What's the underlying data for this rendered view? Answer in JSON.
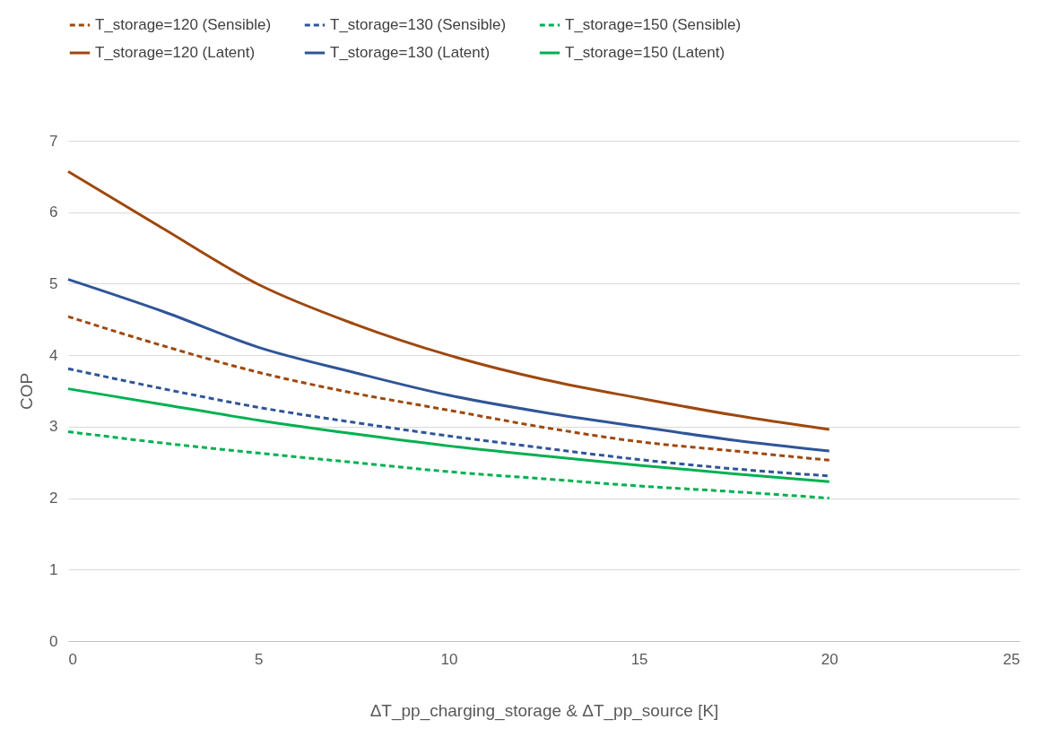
{
  "chart_data": {
    "type": "line",
    "xlabel": "ΔT_pp_charging_storage & ΔT_pp_source [K]",
    "ylabel": "COP",
    "xlim": [
      0,
      25
    ],
    "xticks": [
      0,
      5,
      10,
      15,
      20,
      25
    ],
    "ylim": [
      0,
      7
    ],
    "yticks": [
      0,
      1,
      2,
      3,
      4,
      5,
      6,
      7
    ],
    "grid": "y",
    "legend": "top",
    "marker": "none",
    "x": [
      0,
      2.5,
      5,
      7.5,
      10,
      12.5,
      15,
      17.5,
      20
    ],
    "series": [
      {
        "name": "T_storage=120 (Sensible)",
        "color": "#9e480e",
        "line_style": "dashed",
        "values": [
          4.54,
          4.13,
          3.76,
          3.47,
          3.23,
          2.99,
          2.79,
          2.66,
          2.53
        ]
      },
      {
        "name": "T_storage=130 (Sensible)",
        "color": "#2f5597",
        "line_style": "dashed",
        "values": [
          3.81,
          3.53,
          3.27,
          3.06,
          2.87,
          2.7,
          2.54,
          2.41,
          2.31
        ]
      },
      {
        "name": "T_storage=150 (Sensible)",
        "color": "#00b050",
        "line_style": "dashed",
        "values": [
          2.93,
          2.77,
          2.63,
          2.5,
          2.37,
          2.27,
          2.17,
          2.09,
          2.0
        ]
      },
      {
        "name": "T_storage=120 (Latent)",
        "color": "#9e480e",
        "line_style": "solid",
        "values": [
          6.57,
          5.77,
          4.99,
          4.44,
          4.0,
          3.66,
          3.4,
          3.16,
          2.96
        ]
      },
      {
        "name": "T_storage=130 (Latent)",
        "color": "#2f5597",
        "line_style": "solid",
        "values": [
          5.06,
          4.61,
          4.11,
          3.76,
          3.44,
          3.2,
          3.0,
          2.81,
          2.66
        ]
      },
      {
        "name": "T_storage=150 (Latent)",
        "color": "#00b050",
        "line_style": "solid",
        "values": [
          3.53,
          3.31,
          3.09,
          2.9,
          2.73,
          2.59,
          2.46,
          2.34,
          2.23
        ]
      }
    ]
  }
}
